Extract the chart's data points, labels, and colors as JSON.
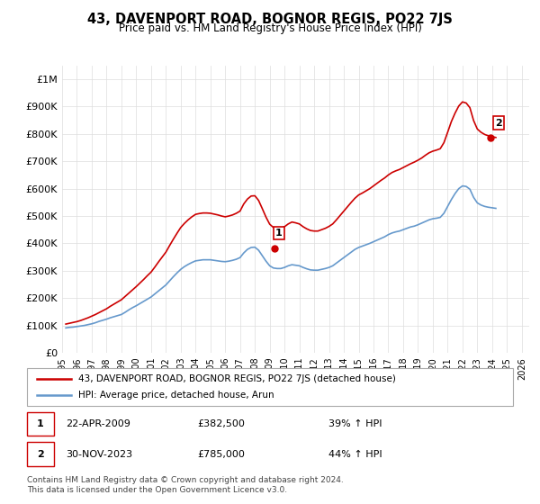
{
  "title": "43, DAVENPORT ROAD, BOGNOR REGIS, PO22 7JS",
  "subtitle": "Price paid vs. HM Land Registry's House Price Index (HPI)",
  "ylabel": "",
  "xlim_left": 1995.0,
  "xlim_right": 2026.5,
  "ylim_bottom": 0,
  "ylim_top": 1050000,
  "yticks": [
    0,
    100000,
    200000,
    300000,
    400000,
    500000,
    600000,
    700000,
    800000,
    900000,
    1000000
  ],
  "ytick_labels": [
    "£0",
    "£100K",
    "£200K",
    "£300K",
    "£400K",
    "£500K",
    "£600K",
    "£700K",
    "£800K",
    "£900K",
    "£1M"
  ],
  "xticks": [
    1995,
    1996,
    1997,
    1998,
    1999,
    2000,
    2001,
    2002,
    2003,
    2004,
    2005,
    2006,
    2007,
    2008,
    2009,
    2010,
    2011,
    2012,
    2013,
    2014,
    2015,
    2016,
    2017,
    2018,
    2019,
    2020,
    2021,
    2022,
    2023,
    2024,
    2025,
    2026
  ],
  "red_color": "#cc0000",
  "blue_color": "#6699cc",
  "dot_color_red": "#cc0000",
  "dot_color_blue": "#6699cc",
  "annotation1_label": "1",
  "annotation1_date": "22-APR-2009",
  "annotation1_price": 382500,
  "annotation1_hpi": "39% ↑ HPI",
  "annotation2_label": "2",
  "annotation2_date": "30-NOV-2023",
  "annotation2_price": 785000,
  "annotation2_hpi": "44% ↑ HPI",
  "legend_line1": "43, DAVENPORT ROAD, BOGNOR REGIS, PO22 7JS (detached house)",
  "legend_line2": "HPI: Average price, detached house, Arun",
  "footnote": "Contains HM Land Registry data © Crown copyright and database right 2024.\nThis data is licensed under the Open Government Licence v3.0.",
  "hpi_x": [
    1995.25,
    1995.5,
    1995.75,
    1996.0,
    1996.25,
    1996.5,
    1996.75,
    1997.0,
    1997.25,
    1997.5,
    1997.75,
    1998.0,
    1998.25,
    1998.5,
    1998.75,
    1999.0,
    1999.25,
    1999.5,
    1999.75,
    2000.0,
    2000.25,
    2000.5,
    2000.75,
    2001.0,
    2001.25,
    2001.5,
    2001.75,
    2002.0,
    2002.25,
    2002.5,
    2002.75,
    2003.0,
    2003.25,
    2003.5,
    2003.75,
    2004.0,
    2004.25,
    2004.5,
    2004.75,
    2005.0,
    2005.25,
    2005.5,
    2005.75,
    2006.0,
    2006.25,
    2006.5,
    2006.75,
    2007.0,
    2007.25,
    2007.5,
    2007.75,
    2008.0,
    2008.25,
    2008.5,
    2008.75,
    2009.0,
    2009.25,
    2009.5,
    2009.75,
    2010.0,
    2010.25,
    2010.5,
    2010.75,
    2011.0,
    2011.25,
    2011.5,
    2011.75,
    2012.0,
    2012.25,
    2012.5,
    2012.75,
    2013.0,
    2013.25,
    2013.5,
    2013.75,
    2014.0,
    2014.25,
    2014.5,
    2014.75,
    2015.0,
    2015.25,
    2015.5,
    2015.75,
    2016.0,
    2016.25,
    2016.5,
    2016.75,
    2017.0,
    2017.25,
    2017.5,
    2017.75,
    2018.0,
    2018.25,
    2018.5,
    2018.75,
    2019.0,
    2019.25,
    2019.5,
    2019.75,
    2020.0,
    2020.25,
    2020.5,
    2020.75,
    2021.0,
    2021.25,
    2021.5,
    2021.75,
    2022.0,
    2022.25,
    2022.5,
    2022.75,
    2023.0,
    2023.25,
    2023.5,
    2023.75,
    2024.0,
    2024.25
  ],
  "hpi_y": [
    91000,
    93000,
    94000,
    96000,
    98000,
    100000,
    103000,
    106000,
    110000,
    115000,
    119000,
    123000,
    128000,
    132000,
    136000,
    140000,
    148000,
    157000,
    165000,
    172000,
    180000,
    188000,
    196000,
    204000,
    215000,
    226000,
    237000,
    248000,
    263000,
    278000,
    292000,
    305000,
    315000,
    323000,
    330000,
    336000,
    338000,
    340000,
    340000,
    340000,
    338000,
    336000,
    334000,
    333000,
    335000,
    338000,
    342000,
    348000,
    365000,
    378000,
    385000,
    386000,
    375000,
    355000,
    335000,
    318000,
    310000,
    308000,
    308000,
    312000,
    318000,
    322000,
    320000,
    318000,
    312000,
    307000,
    303000,
    302000,
    302000,
    305000,
    308000,
    312000,
    318000,
    328000,
    338000,
    348000,
    358000,
    368000,
    378000,
    385000,
    390000,
    395000,
    400000,
    406000,
    412000,
    418000,
    424000,
    432000,
    438000,
    442000,
    445000,
    450000,
    455000,
    460000,
    463000,
    468000,
    474000,
    480000,
    486000,
    490000,
    492000,
    495000,
    510000,
    535000,
    560000,
    582000,
    600000,
    610000,
    608000,
    598000,
    568000,
    548000,
    540000,
    535000,
    532000,
    530000,
    528000
  ],
  "red_x": [
    1995.25,
    1995.5,
    1995.75,
    1996.0,
    1996.25,
    1996.5,
    1996.75,
    1997.0,
    1997.25,
    1997.5,
    1997.75,
    1998.0,
    1998.25,
    1998.5,
    1998.75,
    1999.0,
    1999.25,
    1999.5,
    1999.75,
    2000.0,
    2000.25,
    2000.5,
    2000.75,
    2001.0,
    2001.25,
    2001.5,
    2001.75,
    2002.0,
    2002.25,
    2002.5,
    2002.75,
    2003.0,
    2003.25,
    2003.5,
    2003.75,
    2004.0,
    2004.25,
    2004.5,
    2004.75,
    2005.0,
    2005.25,
    2005.5,
    2005.75,
    2006.0,
    2006.25,
    2006.5,
    2006.75,
    2007.0,
    2007.25,
    2007.5,
    2007.75,
    2008.0,
    2008.25,
    2008.5,
    2008.75,
    2009.0,
    2009.25,
    2009.5,
    2009.75,
    2010.0,
    2010.25,
    2010.5,
    2010.75,
    2011.0,
    2011.25,
    2011.5,
    2011.75,
    2012.0,
    2012.25,
    2012.5,
    2012.75,
    2013.0,
    2013.25,
    2013.5,
    2013.75,
    2014.0,
    2014.25,
    2014.5,
    2014.75,
    2015.0,
    2015.25,
    2015.5,
    2015.75,
    2016.0,
    2016.25,
    2016.5,
    2016.75,
    2017.0,
    2017.25,
    2017.5,
    2017.75,
    2018.0,
    2018.25,
    2018.5,
    2018.75,
    2019.0,
    2019.25,
    2019.5,
    2019.75,
    2020.0,
    2020.25,
    2020.5,
    2020.75,
    2021.0,
    2021.25,
    2021.5,
    2021.75,
    2022.0,
    2022.25,
    2022.5,
    2022.75,
    2023.0,
    2023.25,
    2023.5,
    2023.75,
    2024.0,
    2024.25
  ],
  "red_y": [
    105000,
    108000,
    111000,
    114000,
    118000,
    123000,
    128000,
    134000,
    140000,
    147000,
    154000,
    161000,
    170000,
    178000,
    186000,
    194000,
    206000,
    218000,
    230000,
    242000,
    255000,
    268000,
    282000,
    295000,
    313000,
    332000,
    350000,
    368000,
    392000,
    415000,
    437000,
    458000,
    473000,
    486000,
    497000,
    506000,
    509000,
    511000,
    511000,
    510000,
    507000,
    504000,
    500000,
    497000,
    500000,
    504000,
    510000,
    518000,
    544000,
    562000,
    573000,
    574000,
    557000,
    527000,
    496000,
    470000,
    458000,
    455000,
    455000,
    461000,
    471000,
    478000,
    475000,
    471000,
    461000,
    453000,
    447000,
    445000,
    445000,
    450000,
    455000,
    462000,
    471000,
    486000,
    502000,
    518000,
    534000,
    550000,
    565000,
    577000,
    584000,
    592000,
    600000,
    610000,
    620000,
    630000,
    639000,
    650000,
    659000,
    665000,
    670000,
    677000,
    684000,
    691000,
    697000,
    704000,
    712000,
    722000,
    731000,
    737000,
    741000,
    746000,
    768000,
    806000,
    845000,
    876000,
    902000,
    917000,
    913000,
    896000,
    849000,
    818000,
    806000,
    798000,
    793000,
    790000,
    787000
  ]
}
